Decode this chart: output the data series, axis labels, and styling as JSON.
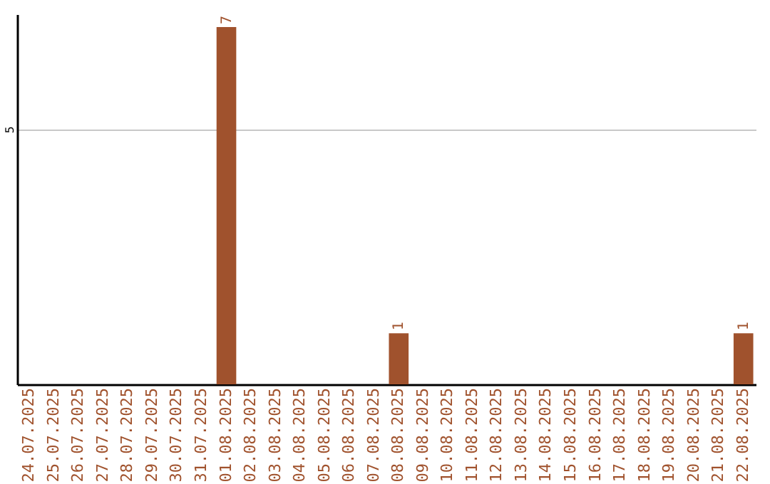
{
  "chart_data": {
    "type": "bar",
    "categories": [
      "24.07.2025",
      "25.07.2025",
      "26.07.2025",
      "27.07.2025",
      "28.07.2025",
      "29.07.2025",
      "30.07.2025",
      "31.07.2025",
      "01.08.2025",
      "02.08.2025",
      "03.08.2025",
      "04.08.2025",
      "05.08.2025",
      "06.08.2025",
      "07.08.2025",
      "08.08.2025",
      "09.08.2025",
      "10.08.2025",
      "11.08.2025",
      "12.08.2025",
      "13.08.2025",
      "14.08.2025",
      "15.08.2025",
      "16.08.2025",
      "17.08.2025",
      "18.08.2025",
      "19.08.2025",
      "20.08.2025",
      "21.08.2025",
      "22.08.2025"
    ],
    "values": [
      0,
      0,
      0,
      0,
      0,
      0,
      0,
      0,
      7,
      0,
      0,
      0,
      0,
      0,
      0,
      1,
      0,
      0,
      0,
      0,
      0,
      0,
      0,
      0,
      0,
      0,
      0,
      0,
      0,
      1
    ],
    "value_labels": [
      null,
      null,
      null,
      null,
      null,
      null,
      null,
      null,
      "7",
      null,
      null,
      null,
      null,
      null,
      null,
      "1",
      null,
      null,
      null,
      null,
      null,
      null,
      null,
      null,
      null,
      null,
      null,
      null,
      null,
      "1"
    ],
    "color": "#a0522d",
    "ylim": [
      0,
      7.25
    ],
    "yticks": [
      5
    ],
    "grid": "y"
  }
}
